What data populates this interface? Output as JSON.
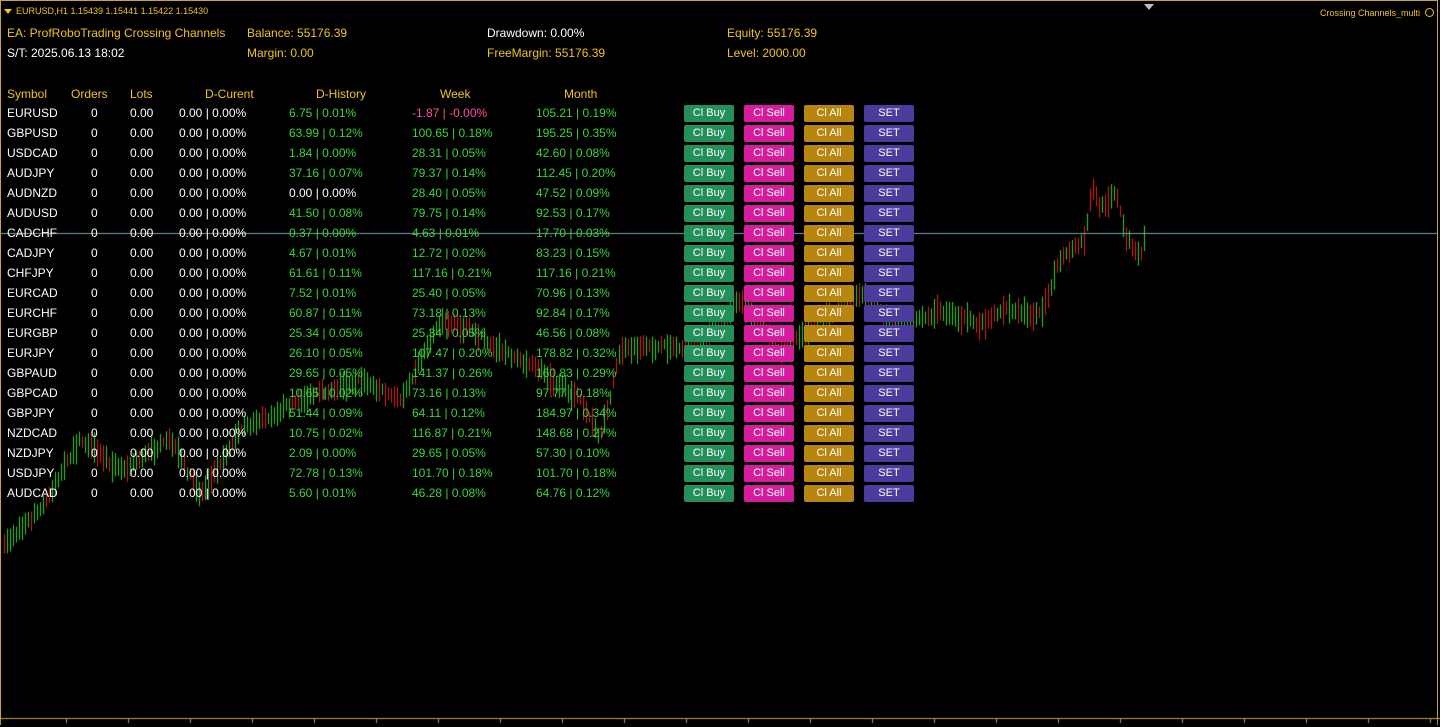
{
  "window": {
    "symbol_info": "EURUSD,H1  1.15439 1.15441 1.15422 1.15430",
    "indicator_name": "Crossing Channels_multi"
  },
  "hud": {
    "ea": "EA: ProfRoboTrading Crossing Channels",
    "st": "S/T:  2025.06.13 18:02",
    "balance": "Balance: 55176.39",
    "margin": "Margin: 0.00",
    "drawdown": "Drawdown: 0.00%",
    "free_margin": "FreeMargin: 55176.39",
    "equity": "Equity: 55176.39",
    "level": "Level: 2000.00"
  },
  "table": {
    "headers": {
      "symbol": "Symbol",
      "orders": "Orders",
      "lots": "Lots",
      "dcur": "D-Curent",
      "dhist": "D-History",
      "week": "Week",
      "month": "Month"
    },
    "buttons": {
      "buy": "Cl Buy",
      "sell": "Cl Sell",
      "all": "Cl All",
      "set": "SET"
    },
    "rows": [
      {
        "symbol": "EURUSD",
        "orders": "0",
        "lots": "0.00",
        "dcur": "0.00 | 0.00%",
        "dhist": "6.75 | 0.01%",
        "week": "-1.87 | -0.00%",
        "month": "105.21 | 0.19%",
        "dhist_color": "green",
        "week_color": "pink"
      },
      {
        "symbol": "GBPUSD",
        "orders": "0",
        "lots": "0.00",
        "dcur": "0.00 | 0.00%",
        "dhist": "63.99 | 0.12%",
        "week": "100.65 | 0.18%",
        "month": "195.25 | 0.35%",
        "dhist_color": "green",
        "week_color": "green"
      },
      {
        "symbol": "USDCAD",
        "orders": "0",
        "lots": "0.00",
        "dcur": "0.00 | 0.00%",
        "dhist": "1.84 | 0.00%",
        "week": "28.31 | 0.05%",
        "month": "42.60 | 0.08%",
        "dhist_color": "green",
        "week_color": "green"
      },
      {
        "symbol": "AUDJPY",
        "orders": "0",
        "lots": "0.00",
        "dcur": "0.00 | 0.00%",
        "dhist": "37.16 | 0.07%",
        "week": "79.37 | 0.14%",
        "month": "112.45 | 0.20%",
        "dhist_color": "green",
        "week_color": "green"
      },
      {
        "symbol": "AUDNZD",
        "orders": "0",
        "lots": "0.00",
        "dcur": "0.00 | 0.00%",
        "dhist": "0.00 | 0.00%",
        "week": "28.40 | 0.05%",
        "month": "47.52 | 0.09%",
        "dhist_color": "white",
        "week_color": "green"
      },
      {
        "symbol": "AUDUSD",
        "orders": "0",
        "lots": "0.00",
        "dcur": "0.00 | 0.00%",
        "dhist": "41.50 | 0.08%",
        "week": "79.75 | 0.14%",
        "month": "92.53 | 0.17%",
        "dhist_color": "green",
        "week_color": "green"
      },
      {
        "symbol": "CADCHF",
        "orders": "0",
        "lots": "0.00",
        "dcur": "0.00 | 0.00%",
        "dhist": "0.37 | 0.00%",
        "week": "4.63 | 0.01%",
        "month": "17.70 | 0.03%",
        "dhist_color": "green",
        "week_color": "green"
      },
      {
        "symbol": "CADJPY",
        "orders": "0",
        "lots": "0.00",
        "dcur": "0.00 | 0.00%",
        "dhist": "4.67 | 0.01%",
        "week": "12.72 | 0.02%",
        "month": "83.23 | 0.15%",
        "dhist_color": "green",
        "week_color": "green"
      },
      {
        "symbol": "CHFJPY",
        "orders": "0",
        "lots": "0.00",
        "dcur": "0.00 | 0.00%",
        "dhist": "61.61 | 0.11%",
        "week": "117.16 | 0.21%",
        "month": "117.16 | 0.21%",
        "dhist_color": "green",
        "week_color": "green"
      },
      {
        "symbol": "EURCAD",
        "orders": "0",
        "lots": "0.00",
        "dcur": "0.00 | 0.00%",
        "dhist": "7.52 | 0.01%",
        "week": "25.40 | 0.05%",
        "month": "70.96 | 0.13%",
        "dhist_color": "green",
        "week_color": "green"
      },
      {
        "symbol": "EURCHF",
        "orders": "0",
        "lots": "0.00",
        "dcur": "0.00 | 0.00%",
        "dhist": "60.87 | 0.11%",
        "week": "73.18 | 0.13%",
        "month": "92.84 | 0.17%",
        "dhist_color": "green",
        "week_color": "green"
      },
      {
        "symbol": "EURGBP",
        "orders": "0",
        "lots": "0.00",
        "dcur": "0.00 | 0.00%",
        "dhist": "25.34 | 0.05%",
        "week": "25.34 | 0.05%",
        "month": "46.56 | 0.08%",
        "dhist_color": "green",
        "week_color": "green"
      },
      {
        "symbol": "EURJPY",
        "orders": "0",
        "lots": "0.00",
        "dcur": "0.00 | 0.00%",
        "dhist": "26.10 | 0.05%",
        "week": "107.47 | 0.20%",
        "month": "178.82 | 0.32%",
        "dhist_color": "green",
        "week_color": "green"
      },
      {
        "symbol": "GBPAUD",
        "orders": "0",
        "lots": "0.00",
        "dcur": "0.00 | 0.00%",
        "dhist": "29.65 | 0.05%",
        "week": "141.37 | 0.26%",
        "month": "160.83 | 0.29%",
        "dhist_color": "green",
        "week_color": "green"
      },
      {
        "symbol": "GBPCAD",
        "orders": "0",
        "lots": "0.00",
        "dcur": "0.00 | 0.00%",
        "dhist": "10.65 | 0.02%",
        "week": "73.16 | 0.13%",
        "month": "97.77 | 0.18%",
        "dhist_color": "green",
        "week_color": "green"
      },
      {
        "symbol": "GBPJPY",
        "orders": "0",
        "lots": "0.00",
        "dcur": "0.00 | 0.00%",
        "dhist": "51.44 | 0.09%",
        "week": "64.11 | 0.12%",
        "month": "184.97 | 0.34%",
        "dhist_color": "green",
        "week_color": "green"
      },
      {
        "symbol": "NZDCAD",
        "orders": "0",
        "lots": "0.00",
        "dcur": "0.00 | 0.00%",
        "dhist": "10.75 | 0.02%",
        "week": "116.87 | 0.21%",
        "month": "148.68 | 0.27%",
        "dhist_color": "green",
        "week_color": "green"
      },
      {
        "symbol": "NZDJPY",
        "orders": "0",
        "lots": "0.00",
        "dcur": "0.00 | 0.00%",
        "dhist": "2.09 | 0.00%",
        "week": "29.65 | 0.05%",
        "month": "57.30 | 0.10%",
        "dhist_color": "green",
        "week_color": "green"
      },
      {
        "symbol": "USDJPY",
        "orders": "0",
        "lots": "0.00",
        "dcur": "0.00 | 0.00%",
        "dhist": "72.78 | 0.13%",
        "week": "101.70 | 0.18%",
        "month": "101.70 | 0.18%",
        "dhist_color": "green",
        "week_color": "green"
      },
      {
        "symbol": "AUDCAD",
        "orders": "0",
        "lots": "0.00",
        "dcur": "0.00 | 0.00%",
        "dhist": "5.60 | 0.01%",
        "week": "46.28 | 0.08%",
        "month": "64.76 | 0.12%",
        "dhist_color": "green",
        "week_color": "green"
      }
    ]
  },
  "colors": {
    "background": "#000000",
    "hud_text": "#f0c419",
    "bull": "#33cc33",
    "bear": "#dd2222",
    "btn_buy": "#23905a",
    "btn_sell": "#d51c9c",
    "btn_all": "#b8860f",
    "btn_set": "#4c3b9c"
  }
}
